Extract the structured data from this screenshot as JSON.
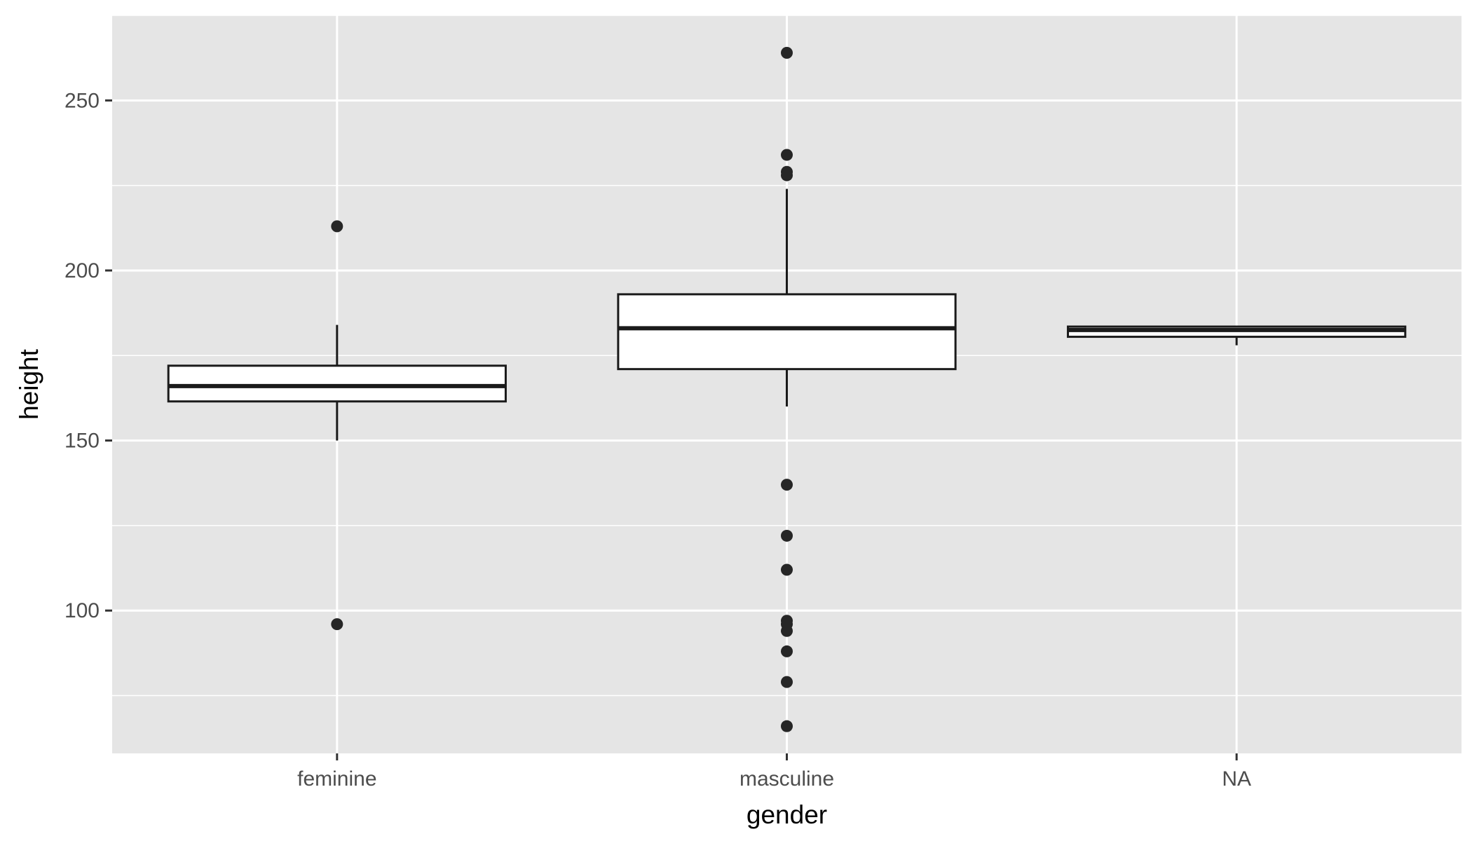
{
  "chart_data": {
    "type": "boxplot",
    "xlabel": "gender",
    "ylabel": "height",
    "ylim": [
      58,
      275
    ],
    "yticks": [
      100,
      150,
      200,
      250
    ],
    "grid": true,
    "legend": "none",
    "colors": {
      "panel": "#e5e5e5",
      "grid": "#ffffff",
      "box_fill": "#ffffff",
      "stroke": "#1a1a1a",
      "point": "#262626"
    },
    "categories": [
      "feminine",
      "masculine",
      "NA"
    ],
    "boxes": [
      {
        "category": "feminine",
        "lower_whisker": 150,
        "q1": 161.5,
        "median": 166,
        "q3": 172,
        "upper_whisker": 184,
        "outliers": [
          96,
          213
        ]
      },
      {
        "category": "masculine",
        "lower_whisker": 160,
        "q1": 171,
        "median": 183,
        "q3": 193,
        "upper_whisker": 224,
        "outliers": [
          66,
          79,
          88,
          94,
          96,
          97,
          112,
          122,
          137,
          228,
          229,
          234,
          264
        ]
      },
      {
        "category": "NA",
        "lower_whisker": 178,
        "q1": 180.5,
        "median": 182.5,
        "q3": 183.5,
        "upper_whisker": 183.5,
        "outliers": []
      }
    ]
  }
}
